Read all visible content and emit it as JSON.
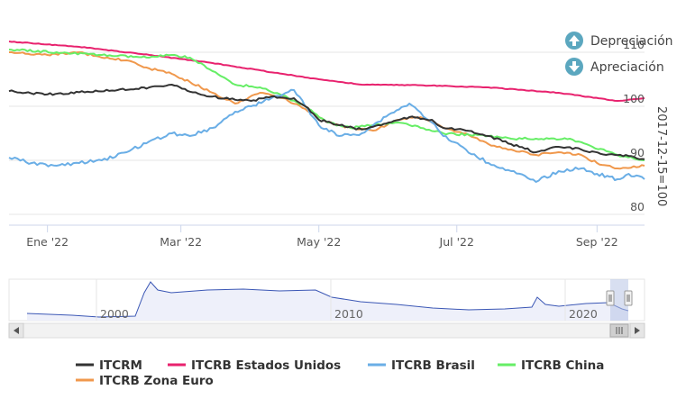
{
  "chart_data": {
    "type": "line",
    "xlabel": "",
    "ylabel": "2017-12-15=100",
    "x_ticks": [
      "Ene '22",
      "Mar '22",
      "May '22",
      "Jul '22",
      "Sep '22"
    ],
    "y_ticks": [
      80,
      90,
      100,
      110
    ],
    "ylim": [
      78,
      118
    ],
    "x_range": [
      "2021-12-15",
      "2022-09-22"
    ],
    "grid": true,
    "legend": "bottom",
    "annotations": {
      "depreciacion": "Depreciación",
      "apreciacion": "Apreciación"
    },
    "navigator": {
      "labels": [
        "2000",
        "2010",
        "2020"
      ]
    },
    "series": [
      {
        "name": "ITCRM",
        "color": "#333333",
        "points": [
          [
            "2021-12-15",
            102.8
          ],
          [
            "2022-01-01",
            102.2
          ],
          [
            "2022-01-15",
            102.6
          ],
          [
            "2022-02-01",
            103.0
          ],
          [
            "2022-02-15",
            103.5
          ],
          [
            "2022-02-25",
            104.0
          ],
          [
            "2022-03-05",
            102.7
          ],
          [
            "2022-03-15",
            101.8
          ],
          [
            "2022-03-25",
            101.2
          ],
          [
            "2022-04-01",
            101.0
          ],
          [
            "2022-04-10",
            101.8
          ],
          [
            "2022-04-20",
            101.5
          ],
          [
            "2022-04-25",
            100.0
          ],
          [
            "2022-05-01",
            97.5
          ],
          [
            "2022-05-10",
            96.5
          ],
          [
            "2022-05-20",
            95.7
          ],
          [
            "2022-06-01",
            97.0
          ],
          [
            "2022-06-10",
            98.0
          ],
          [
            "2022-06-20",
            97.5
          ],
          [
            "2022-06-25",
            96.0
          ],
          [
            "2022-07-05",
            95.5
          ],
          [
            "2022-07-15",
            94.5
          ],
          [
            "2022-07-25",
            93.0
          ],
          [
            "2022-08-05",
            91.5
          ],
          [
            "2022-08-15",
            92.5
          ],
          [
            "2022-08-25",
            92.0
          ],
          [
            "2022-09-05",
            91.0
          ],
          [
            "2022-09-15",
            90.8
          ],
          [
            "2022-09-22",
            90.2
          ]
        ]
      },
      {
        "name": "ITCRB Estados Unidos",
        "color": "#e8226e",
        "points": [
          [
            "2021-12-15",
            112.0
          ],
          [
            "2022-01-15",
            111.0
          ],
          [
            "2022-02-15",
            109.5
          ],
          [
            "2022-03-15",
            108.0
          ],
          [
            "2022-04-15",
            106.0
          ],
          [
            "2022-05-01",
            105.0
          ],
          [
            "2022-05-20",
            104.0
          ],
          [
            "2022-06-15",
            103.9
          ],
          [
            "2022-07-15",
            103.5
          ],
          [
            "2022-08-15",
            102.5
          ],
          [
            "2022-09-10",
            101.0
          ],
          [
            "2022-09-22",
            101.5
          ]
        ]
      },
      {
        "name": "ITCRB Brasil",
        "color": "#6aaee6",
        "points": [
          [
            "2021-12-15",
            90.5
          ],
          [
            "2021-12-25",
            89.5
          ],
          [
            "2022-01-05",
            89.0
          ],
          [
            "2022-01-15",
            89.5
          ],
          [
            "2022-01-25",
            90.0
          ],
          [
            "2022-02-05",
            91.5
          ],
          [
            "2022-02-15",
            93.5
          ],
          [
            "2022-02-25",
            95.0
          ],
          [
            "2022-03-05",
            94.5
          ],
          [
            "2022-03-15",
            96.0
          ],
          [
            "2022-03-25",
            99.0
          ],
          [
            "2022-04-01",
            100.0
          ],
          [
            "2022-04-10",
            101.5
          ],
          [
            "2022-04-20",
            103.0
          ],
          [
            "2022-05-01",
            96.5
          ],
          [
            "2022-05-10",
            94.5
          ],
          [
            "2022-05-20",
            95.0
          ],
          [
            "2022-06-01",
            98.5
          ],
          [
            "2022-06-10",
            100.5
          ],
          [
            "2022-06-20",
            97.0
          ],
          [
            "2022-06-25",
            94.5
          ],
          [
            "2022-07-05",
            92.0
          ],
          [
            "2022-07-15",
            89.5
          ],
          [
            "2022-07-25",
            88.0
          ],
          [
            "2022-08-05",
            86.0
          ],
          [
            "2022-08-15",
            88.0
          ],
          [
            "2022-08-25",
            88.5
          ],
          [
            "2022-09-01",
            87.5
          ],
          [
            "2022-09-10",
            86.5
          ],
          [
            "2022-09-15",
            87.5
          ],
          [
            "2022-09-22",
            86.5
          ]
        ]
      },
      {
        "name": "ITCRB China",
        "color": "#66ee66",
        "points": [
          [
            "2021-12-15",
            110.5
          ],
          [
            "2022-01-05",
            110.0
          ],
          [
            "2022-01-25",
            109.5
          ],
          [
            "2022-02-15",
            109.0
          ],
          [
            "2022-02-25",
            109.5
          ],
          [
            "2022-03-05",
            109.0
          ],
          [
            "2022-03-15",
            106.5
          ],
          [
            "2022-03-25",
            104.0
          ],
          [
            "2022-04-05",
            103.5
          ],
          [
            "2022-04-15",
            102.0
          ],
          [
            "2022-04-25",
            100.0
          ],
          [
            "2022-05-05",
            97.0
          ],
          [
            "2022-05-15",
            96.0
          ],
          [
            "2022-05-25",
            96.5
          ],
          [
            "2022-06-05",
            97.0
          ],
          [
            "2022-06-15",
            96.0
          ],
          [
            "2022-06-25",
            95.0
          ],
          [
            "2022-07-15",
            94.5
          ],
          [
            "2022-07-25",
            94.0
          ],
          [
            "2022-08-05",
            94.0
          ],
          [
            "2022-08-20",
            94.0
          ],
          [
            "2022-08-30",
            92.5
          ],
          [
            "2022-09-10",
            91.0
          ],
          [
            "2022-09-22",
            90.0
          ]
        ]
      },
      {
        "name": "ITCRB Zona Euro",
        "color": "#f0984c",
        "points": [
          [
            "2021-12-15",
            110.0
          ],
          [
            "2022-01-01",
            109.5
          ],
          [
            "2022-01-15",
            110.0
          ],
          [
            "2022-01-25",
            109.0
          ],
          [
            "2022-02-05",
            108.5
          ],
          [
            "2022-02-15",
            107.0
          ],
          [
            "2022-02-25",
            106.0
          ],
          [
            "2022-03-05",
            104.5
          ],
          [
            "2022-03-15",
            102.5
          ],
          [
            "2022-03-25",
            100.5
          ],
          [
            "2022-04-05",
            102.5
          ],
          [
            "2022-04-15",
            101.5
          ],
          [
            "2022-04-25",
            99.5
          ],
          [
            "2022-05-05",
            97.0
          ],
          [
            "2022-05-15",
            96.0
          ],
          [
            "2022-05-25",
            95.5
          ],
          [
            "2022-06-05",
            97.5
          ],
          [
            "2022-06-15",
            98.0
          ],
          [
            "2022-06-25",
            96.0
          ],
          [
            "2022-07-05",
            95.0
          ],
          [
            "2022-07-15",
            93.0
          ],
          [
            "2022-07-25",
            92.0
          ],
          [
            "2022-08-05",
            91.0
          ],
          [
            "2022-08-15",
            91.5
          ],
          [
            "2022-08-25",
            91.0
          ],
          [
            "2022-09-01",
            89.5
          ],
          [
            "2022-09-10",
            88.5
          ],
          [
            "2022-09-22",
            89.0
          ]
        ]
      }
    ]
  }
}
